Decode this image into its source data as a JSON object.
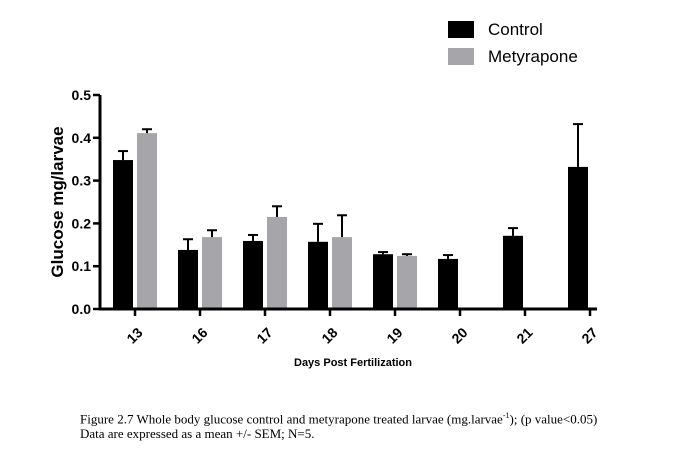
{
  "chart_data": {
    "type": "bar",
    "title": "",
    "xlabel": "Days Post Fertilization",
    "ylabel": "Glucose mg/larvae",
    "ylim": [
      0,
      0.5
    ],
    "yticks": [
      "0.0",
      "0.1",
      "0.2",
      "0.3",
      "0.4",
      "0.5"
    ],
    "categories": [
      "13",
      "16",
      "17",
      "18",
      "19",
      "20",
      "21",
      "27"
    ],
    "series": [
      {
        "name": "Control",
        "color": "#000000",
        "values": [
          0.348,
          0.138,
          0.159,
          0.157,
          0.128,
          0.117,
          0.171,
          0.332
        ],
        "sem": [
          0.021,
          0.025,
          0.014,
          0.042,
          0.005,
          0.009,
          0.018,
          0.1
        ]
      },
      {
        "name": "Metyrapone",
        "color": "#a6a6aa",
        "values": [
          0.411,
          0.168,
          0.215,
          0.168,
          0.124,
          null,
          null,
          null
        ],
        "sem": [
          0.009,
          0.016,
          0.025,
          0.051,
          0.004,
          null,
          null,
          null
        ]
      }
    ],
    "legend": "top-right",
    "grid": false
  },
  "caption": {
    "part1": "Figure 2.7 Whole body glucose control and metyrapone treated larvae (mg.larvae",
    "superscript": "-1",
    "part2": "); (p value<0.05) Data are expressed as a mean +/- SEM; N=5."
  }
}
